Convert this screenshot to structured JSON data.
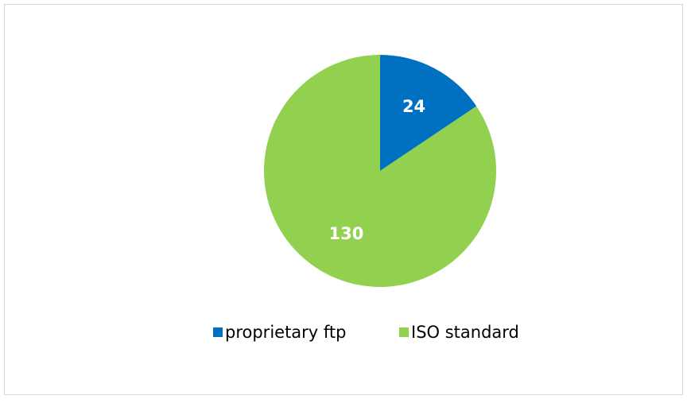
{
  "chart_data": {
    "type": "pie",
    "categories": [
      "proprietary ftp",
      "ISO standard"
    ],
    "values": [
      24,
      130
    ],
    "colors": [
      "#0070c0",
      "#92d050"
    ],
    "data_labels": true,
    "legend": "bottom"
  }
}
